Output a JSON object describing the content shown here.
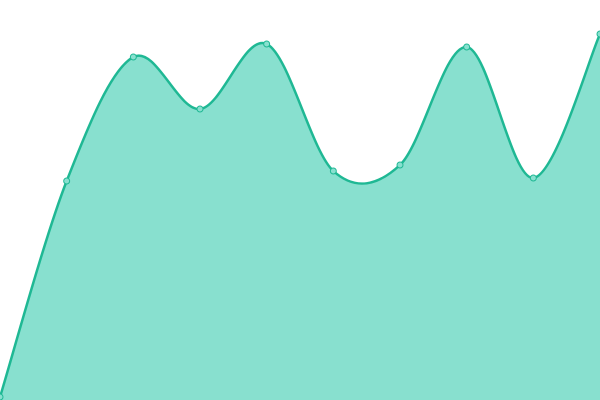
{
  "chart_data": {
    "type": "area",
    "categories": [
      null,
      null,
      null,
      null,
      null,
      null,
      null,
      null,
      null,
      null
    ],
    "ylim": [
      0,
      400
    ],
    "series": [
      {
        "color": "#1fb894",
        "fill": "#88e0cf",
        "values": [
          3,
          219,
          343,
          291,
          356,
          229,
          235,
          353,
          222,
          366
        ]
      }
    ]
  }
}
